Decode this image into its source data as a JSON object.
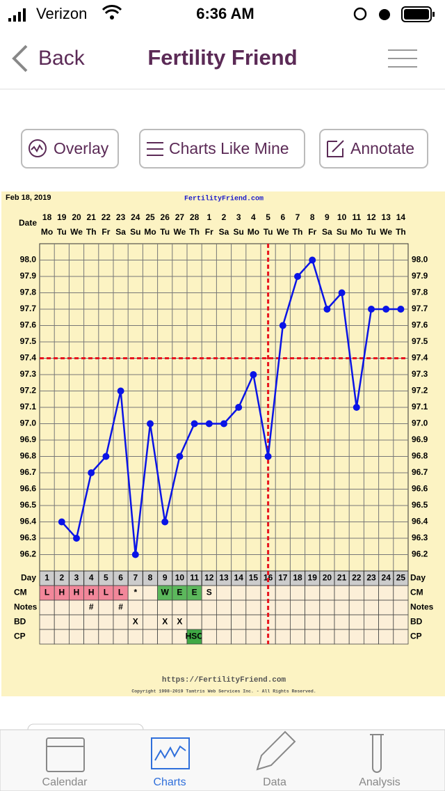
{
  "status_bar": {
    "carrier": "Verizon",
    "time": "6:36 AM"
  },
  "nav": {
    "back": "Back",
    "title": "Fertility Friend"
  },
  "buttons": [
    "Overlay",
    "Charts Like Mine",
    "Annotate"
  ],
  "chart_data": {
    "type": "line",
    "title": "Feb 18, 2019",
    "subtitle": "FertilityFriend.com",
    "date_label": "Date",
    "day_label": "Day",
    "categories": [
      1,
      2,
      3,
      4,
      5,
      6,
      7,
      8,
      9,
      10,
      11,
      12,
      13,
      14,
      15,
      16,
      17,
      18,
      19,
      20,
      21,
      22,
      23,
      24,
      25
    ],
    "dates": [
      18,
      19,
      20,
      21,
      22,
      23,
      24,
      25,
      26,
      27,
      28,
      1,
      2,
      3,
      4,
      5,
      6,
      7,
      8,
      9,
      10,
      11,
      12,
      13,
      14
    ],
    "weekdays": [
      "Mo",
      "Tu",
      "We",
      "Th",
      "Fr",
      "Sa",
      "Su",
      "Mo",
      "Tu",
      "We",
      "Th",
      "Fr",
      "Sa",
      "Su",
      "Mo",
      "Tu",
      "We",
      "Th",
      "Fr",
      "Sa",
      "Su",
      "Mo",
      "Tu",
      "We",
      "Th"
    ],
    "values": [
      null,
      96.4,
      96.3,
      96.7,
      96.8,
      97.2,
      96.2,
      97.0,
      96.4,
      96.8,
      97.0,
      97.0,
      97.0,
      97.1,
      97.3,
      96.8,
      97.6,
      97.9,
      98.0,
      97.7,
      97.8,
      97.1,
      97.7,
      97.7,
      97.7
    ],
    "color": "#0a14e6",
    "ylim": [
      96.1,
      98.1
    ],
    "yticks": [
      96.2,
      96.3,
      96.4,
      96.5,
      96.6,
      96.7,
      96.8,
      96.9,
      {
        "value": 97,
        "label": "97.0"
      },
      97.1,
      97.2,
      97.3,
      97.4,
      97.5,
      97.6,
      97.7,
      97.8,
      97.9,
      {
        "value": 98,
        "label": "98.0"
      }
    ],
    "coverline": 97.4,
    "ovulation_day": 16,
    "marker_line_color": "#e8141e",
    "grid": true,
    "rows": [
      {
        "label": "CM",
        "cells": [
          "L",
          "H",
          "H",
          "H",
          "L",
          "L",
          "*",
          null,
          "W",
          "E",
          "E",
          "S",
          null,
          null,
          null,
          null,
          null,
          null,
          null,
          null,
          null,
          null,
          null,
          null,
          null
        ],
        "fills": [
          "#f2879a",
          "#f2879a",
          "#f2879a",
          "#f2879a",
          "#f2879a",
          "#f2879a",
          null,
          null,
          "#5cb85c",
          "#5cb85c",
          "#5cb85c",
          null,
          null,
          null,
          null,
          null,
          null,
          null,
          null,
          null,
          null,
          null,
          null,
          null,
          null
        ]
      },
      {
        "label": "Notes",
        "cells": [
          null,
          null,
          null,
          "#",
          null,
          "#",
          null,
          null,
          null,
          null,
          null,
          null,
          null,
          null,
          null,
          null,
          null,
          null,
          null,
          null,
          null,
          null,
          null,
          null,
          null
        ],
        "fills": [
          null,
          null,
          null,
          null,
          null,
          null,
          null,
          null,
          null,
          null,
          null,
          null,
          null,
          null,
          null,
          null,
          null,
          null,
          null,
          null,
          null,
          null,
          null,
          null,
          null
        ]
      },
      {
        "label": "BD",
        "cells": [
          null,
          null,
          null,
          null,
          null,
          null,
          "X",
          null,
          "X",
          "X",
          null,
          null,
          null,
          null,
          null,
          null,
          null,
          null,
          null,
          null,
          null,
          null,
          null,
          null,
          null
        ],
        "fills": [
          null,
          null,
          null,
          null,
          null,
          null,
          null,
          null,
          null,
          null,
          null,
          null,
          null,
          null,
          null,
          null,
          null,
          null,
          null,
          null,
          null,
          null,
          null,
          null,
          null
        ]
      },
      {
        "label": "CP",
        "cells": [
          null,
          null,
          null,
          null,
          null,
          null,
          null,
          null,
          null,
          null,
          "HSO",
          null,
          null,
          null,
          null,
          null,
          null,
          null,
          null,
          null,
          null,
          null,
          null,
          null,
          null
        ],
        "fills": [
          null,
          null,
          null,
          null,
          null,
          null,
          null,
          null,
          null,
          null,
          "#3fa845",
          null,
          null,
          null,
          null,
          null,
          null,
          null,
          null,
          null,
          null,
          null,
          null,
          null,
          null
        ]
      }
    ],
    "footer_url": "https://FertilityFriend.com",
    "copyright": "Copyright 1998-2019 Tamtris Web Services Inc. - All Rights Reserved."
  },
  "tab_bar": [
    "Calendar",
    "Charts",
    "Data",
    "Analysis"
  ]
}
